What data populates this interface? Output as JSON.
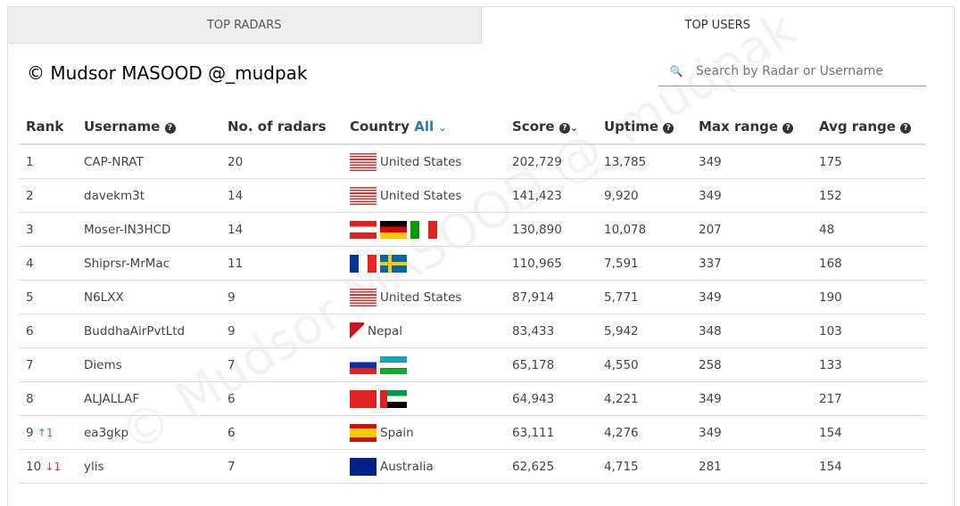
{
  "tabs": [
    {
      "label": "TOP RADARS",
      "active": false
    },
    {
      "label": "TOP USERS",
      "active": true
    }
  ],
  "search": {
    "placeholder": "Search by Radar or Username",
    "icon": "search-icon"
  },
  "columns": {
    "rank": "Rank",
    "username": "Username",
    "radars": "No. of radars",
    "country": "Country",
    "country_filter": "All",
    "score": "Score",
    "uptime": "Uptime",
    "max_range": "Max range",
    "avg_range": "Avg range"
  },
  "rows": [
    {
      "rank": "1",
      "change": "",
      "dir": "",
      "username": "CAP-NRAT",
      "radars": "20",
      "flags": [
        "us"
      ],
      "country": "United States",
      "score": "202,729",
      "uptime": "13,785",
      "max": "349",
      "avg": "175"
    },
    {
      "rank": "2",
      "change": "",
      "dir": "",
      "username": "davekm3t",
      "radars": "14",
      "flags": [
        "us"
      ],
      "country": "United States",
      "score": "141,423",
      "uptime": "9,920",
      "max": "349",
      "avg": "152"
    },
    {
      "rank": "3",
      "change": "",
      "dir": "",
      "username": "Moser-IN3HCD",
      "radars": "14",
      "flags": [
        "at",
        "de",
        "it"
      ],
      "country": "",
      "score": "130,890",
      "uptime": "10,078",
      "max": "207",
      "avg": "48"
    },
    {
      "rank": "4",
      "change": "",
      "dir": "",
      "username": "Shiprsr-MrMac",
      "radars": "11",
      "flags": [
        "fr",
        "se"
      ],
      "country": "",
      "score": "110,965",
      "uptime": "7,591",
      "max": "337",
      "avg": "168"
    },
    {
      "rank": "5",
      "change": "",
      "dir": "",
      "username": "N6LXX",
      "radars": "9",
      "flags": [
        "us"
      ],
      "country": "United States",
      "score": "87,914",
      "uptime": "5,771",
      "max": "349",
      "avg": "190"
    },
    {
      "rank": "6",
      "change": "",
      "dir": "",
      "username": "BuddhaAirPvtLtd",
      "radars": "9",
      "flags": [
        "np"
      ],
      "country": "Nepal",
      "score": "83,433",
      "uptime": "5,942",
      "max": "348",
      "avg": "103"
    },
    {
      "rank": "7",
      "change": "",
      "dir": "",
      "username": "Diems",
      "radars": "7",
      "flags": [
        "ru",
        "uz"
      ],
      "country": "",
      "score": "65,178",
      "uptime": "4,550",
      "max": "258",
      "avg": "133"
    },
    {
      "rank": "8",
      "change": "",
      "dir": "",
      "username": "ALJALLAF",
      "radars": "6",
      "flags": [
        "ch",
        "ae"
      ],
      "country": "",
      "score": "64,943",
      "uptime": "4,221",
      "max": "349",
      "avg": "217"
    },
    {
      "rank": "9",
      "change": "1",
      "dir": "up",
      "username": "ea3gkp",
      "radars": "6",
      "flags": [
        "es"
      ],
      "country": "Spain",
      "score": "63,111",
      "uptime": "4,276",
      "max": "349",
      "avg": "154"
    },
    {
      "rank": "10",
      "change": "1",
      "dir": "down",
      "username": "ylis",
      "radars": "7",
      "flags": [
        "au"
      ],
      "country": "Australia",
      "score": "62,625",
      "uptime": "4,715",
      "max": "281",
      "avg": "154"
    }
  ],
  "watermark": "© Mudsor MASOOD @_mudpak",
  "credit": "© Mudsor MASOOD @_mudpak",
  "colors": {
    "accent": "#2e7ab8",
    "up": "#2a9a3a",
    "down": "#dd3333"
  }
}
